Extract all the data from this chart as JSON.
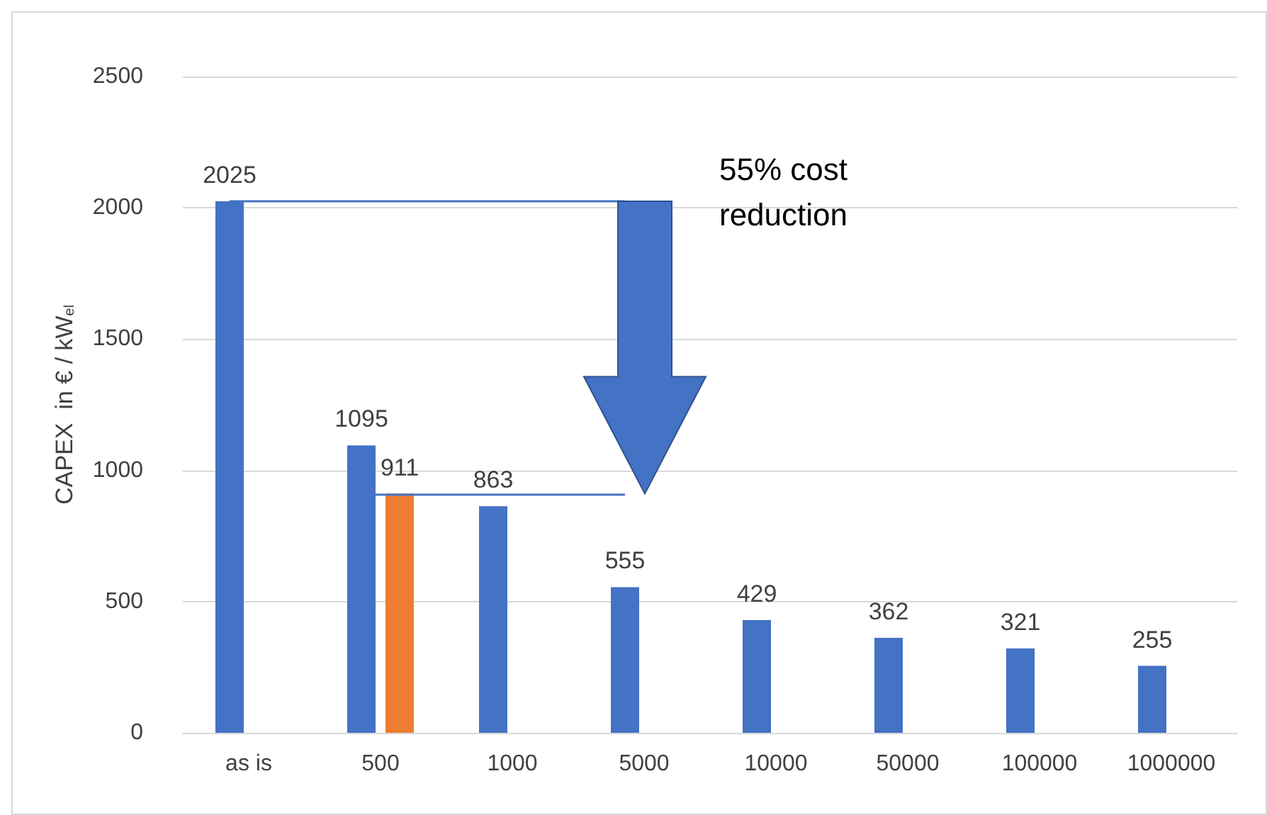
{
  "chart_data": {
    "type": "bar",
    "ylabel": "CAPEX  in € / kW$_{el}$",
    "categories": [
      "as is",
      "500",
      "1000",
      "5000",
      "10000",
      "50000",
      "100000",
      "1000000"
    ],
    "series": [
      {
        "color": "#4472c4",
        "values": [
          2025,
          1095,
          863,
          555,
          429,
          362,
          321,
          255
        ]
      },
      {
        "color": "#ed7d31",
        "values": [
          null,
          911,
          null,
          null,
          null,
          null,
          null,
          null
        ]
      }
    ],
    "ylim": [
      0,
      2500
    ],
    "yticks": [
      0,
      500,
      1000,
      1500,
      2000,
      2500
    ],
    "grid": "y",
    "data_labels": true,
    "ref_lines": [
      {
        "axis": "y",
        "value": 2025,
        "color": "#4472c4"
      },
      {
        "axis": "y",
        "value": 911,
        "color": "#4472c4"
      }
    ],
    "annotations": [
      "55% cost reduction"
    ]
  }
}
